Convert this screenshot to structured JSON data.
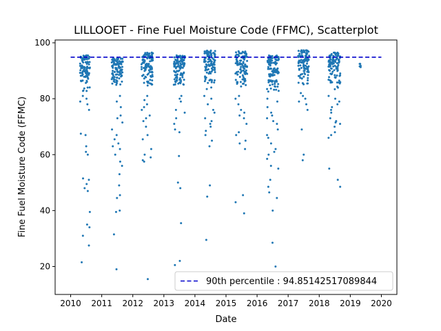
{
  "chart_data": {
    "type": "scatter",
    "title": "LILLOOET - Fine Fuel Moisture Code (FFMC), Scatterplot",
    "xlabel": "Date",
    "ylabel": "Fine Fuel Moisture Code (FFMC)",
    "xlim": [
      2009.5,
      2020.5
    ],
    "ylim": [
      10,
      101
    ],
    "xticks": [
      "2010",
      "2011",
      "2012",
      "2013",
      "2014",
      "2015",
      "2016",
      "2017",
      "2018",
      "2019",
      "2020"
    ],
    "yticks": [
      "20",
      "40",
      "60",
      "80",
      "100"
    ],
    "grid": false,
    "legend": {
      "placement": "bottom-right",
      "entry": "90th percentile : 94.85142517089844"
    },
    "reference_line": {
      "name": "90th percentile",
      "value": 94.85142517089844,
      "x_range": [
        2010.0,
        2020.0
      ],
      "color": "#0000cc",
      "style": "dashed"
    },
    "marker_color": "#1f77b4",
    "seasons": [
      {
        "year": 2010,
        "x_start": 2010.3,
        "x_end": 2010.62,
        "core_min": 82,
        "core_max": 95.5,
        "outliers": [
          21.5,
          27.5,
          31,
          34,
          35,
          39.5,
          47,
          48,
          49.5,
          51,
          51.5,
          60,
          61,
          63,
          67,
          67.5,
          76,
          78,
          79,
          80,
          81
        ]
      },
      {
        "year": 2011,
        "x_start": 2011.32,
        "x_end": 2011.68,
        "core_min": 84,
        "core_max": 94.5,
        "outliers": [
          19,
          31.5,
          39.5,
          40,
          44.5,
          45.5,
          49,
          53,
          56,
          57.5,
          60,
          62,
          63,
          64,
          65.5,
          67,
          69,
          71.5,
          73,
          74,
          77,
          79,
          81
        ]
      },
      {
        "year": 2012,
        "x_start": 2012.28,
        "x_end": 2012.65,
        "core_min": 84,
        "core_max": 96.5,
        "outliers": [
          15.5,
          57.5,
          58,
          59,
          60,
          62,
          65.5,
          67,
          70,
          72,
          73,
          74,
          76,
          77,
          78,
          79.5,
          81
        ]
      },
      {
        "year": 2013,
        "x_start": 2013.32,
        "x_end": 2013.68,
        "core_min": 84,
        "core_max": 95.5,
        "outliers": [
          20.5,
          22,
          35.5,
          48,
          50,
          59.5,
          68,
          69,
          71,
          73,
          75,
          76,
          79,
          80,
          81
        ]
      },
      {
        "year": 2014,
        "x_start": 2014.3,
        "x_end": 2014.66,
        "core_min": 83,
        "core_max": 97.5,
        "outliers": [
          29.5,
          45,
          49,
          63,
          65,
          67,
          68.5,
          70,
          71,
          72,
          73,
          75,
          76,
          78,
          80,
          81
        ]
      },
      {
        "year": 2015,
        "x_start": 2015.3,
        "x_end": 2015.68,
        "core_min": 84,
        "core_max": 97,
        "outliers": [
          39,
          43,
          45.5,
          62,
          64,
          65,
          67,
          68,
          71,
          73,
          74,
          75,
          76,
          78,
          80,
          81
        ]
      },
      {
        "year": 2016,
        "x_start": 2016.32,
        "x_end": 2016.7,
        "core_min": 82,
        "core_max": 95.5,
        "outliers": [
          20,
          28.5,
          40,
          44.5,
          46.5,
          48.5,
          51,
          55,
          56,
          58.5,
          60,
          61,
          62,
          64,
          66,
          67,
          69,
          71,
          72,
          73,
          74,
          75,
          77,
          79,
          80
        ]
      },
      {
        "year": 2017,
        "x_start": 2017.32,
        "x_end": 2017.68,
        "core_min": 84,
        "core_max": 97.5,
        "outliers": [
          58,
          60,
          69,
          76,
          78,
          79,
          80,
          81,
          82
        ]
      },
      {
        "year": 2018,
        "x_start": 2018.3,
        "x_end": 2018.68,
        "core_min": 82,
        "core_max": 96.5,
        "outliers": [
          48.5,
          51,
          55,
          66,
          67,
          68,
          70,
          71,
          71.5,
          72,
          73,
          75,
          76,
          77,
          78,
          79,
          80,
          81
        ]
      },
      {
        "year": 2019,
        "x_start": 2019.3,
        "x_end": 2019.34,
        "core_min": 90.5,
        "core_max": 92.5,
        "outliers": []
      }
    ]
  }
}
